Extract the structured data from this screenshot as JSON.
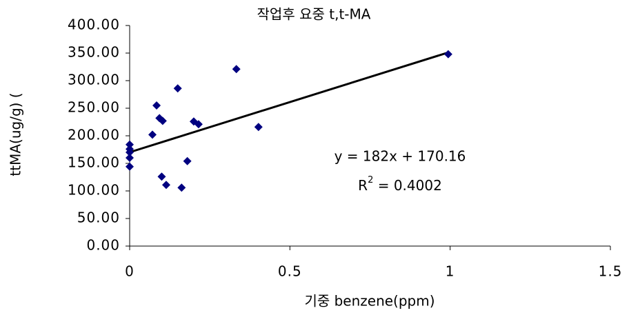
{
  "chart_data": {
    "type": "scatter",
    "title": "작업후 요중 t,t-MA",
    "x_label": "기중  benzene(ppm)",
    "y_label": "ttMA(ug/g) (",
    "xlim": [
      0,
      1.5
    ],
    "xticks": [
      0,
      0.5,
      1,
      1.5
    ],
    "ylim": [
      0,
      400
    ],
    "yticks": [
      {
        "value": 0,
        "label": "0.00"
      },
      {
        "value": 50,
        "label": "50.00"
      },
      {
        "value": 100,
        "label": "100.00"
      },
      {
        "value": 150,
        "label": "150.00"
      },
      {
        "value": 200,
        "label": "200.00"
      },
      {
        "value": 250,
        "label": "250.00"
      },
      {
        "value": 300,
        "label": "300.00"
      },
      {
        "value": 350,
        "label": "350.00"
      },
      {
        "value": 400,
        "label": "400.00"
      }
    ],
    "color": "#000080",
    "x": [
      0,
      0,
      0,
      0,
      0,
      0.084,
      0.093,
      0.103,
      0.071,
      0.15,
      0.2,
      0.215,
      0.18,
      0.1,
      0.114,
      0.162,
      0.333,
      0.402,
      0.994
    ],
    "values": [
      184,
      176,
      170,
      160,
      144,
      255,
      232,
      227,
      202,
      286,
      226,
      221,
      154,
      126,
      111,
      106,
      321,
      216,
      348
    ],
    "trendline": {
      "slope": 182,
      "intercept": 170.16,
      "color": "#000000"
    },
    "equation": "y = 182x + 170.16",
    "r_squared": {
      "base": "R",
      "sup": "2",
      "rest": " = 0.4002"
    }
  }
}
